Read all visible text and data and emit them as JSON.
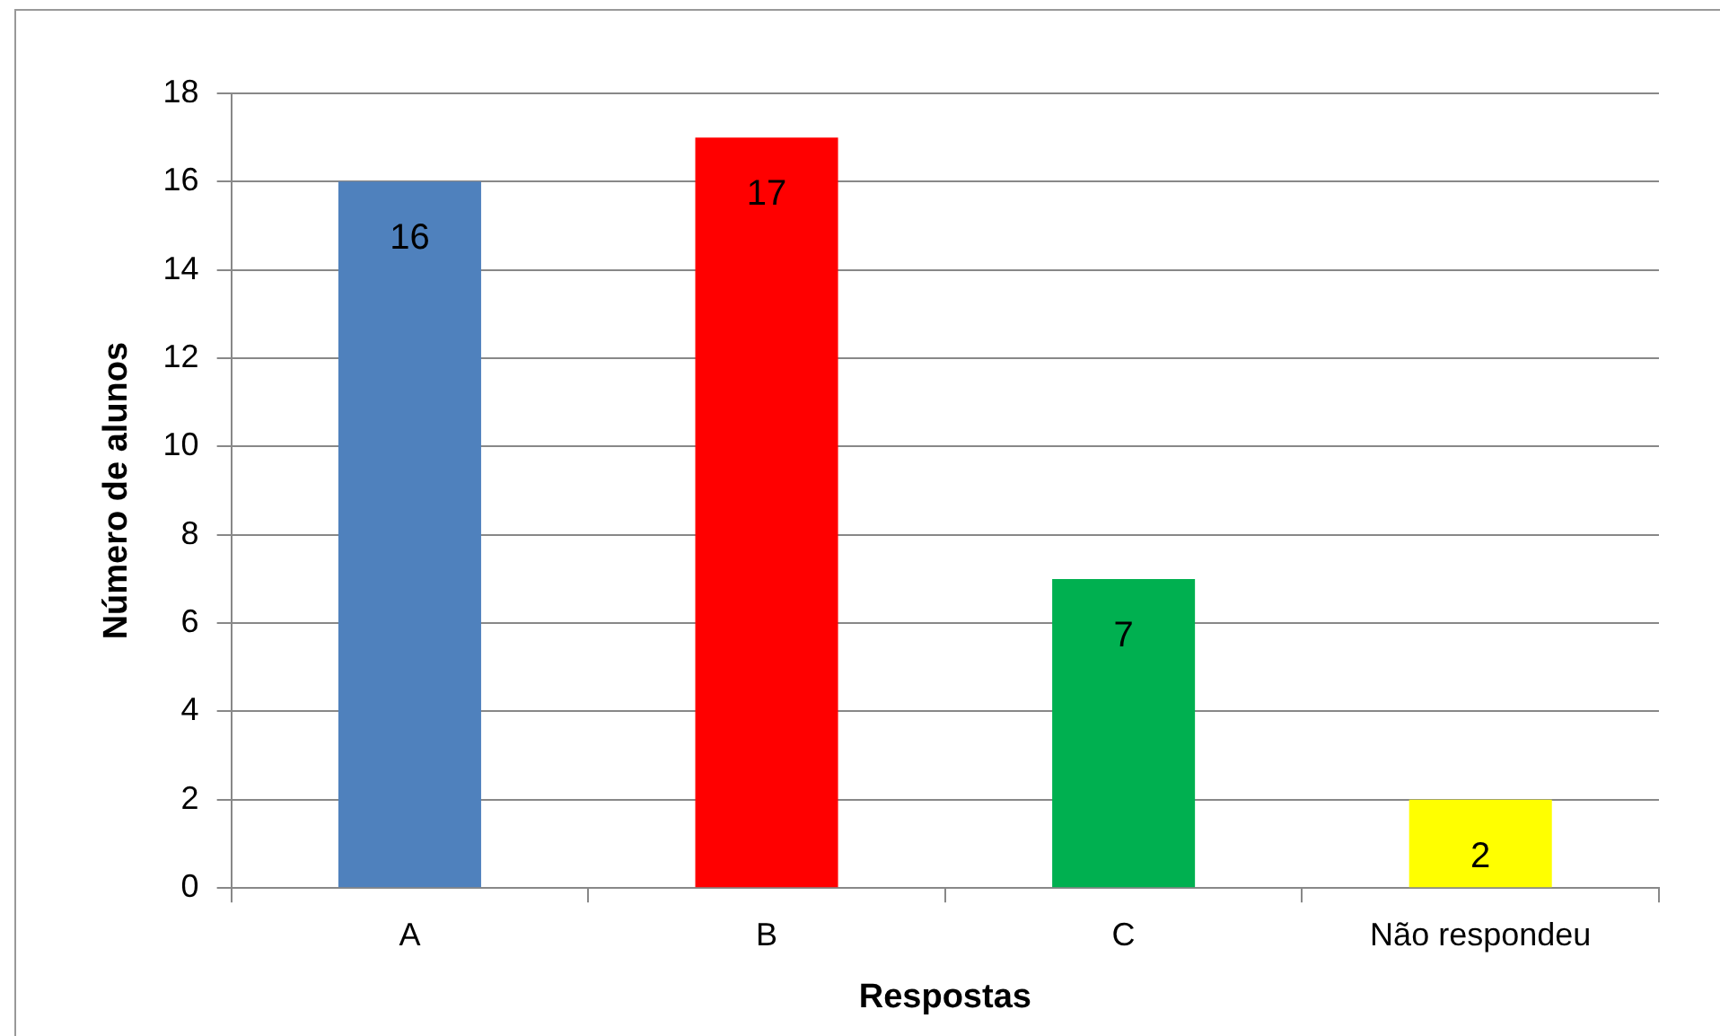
{
  "chart_data": {
    "type": "bar",
    "xlabel": "Respostas",
    "ylabel": "Número de alunos",
    "categories": [
      "A",
      "B",
      "C",
      "Não respondeu"
    ],
    "values": [
      16,
      17,
      7,
      2
    ],
    "colors": [
      "#4f81bd",
      "#ff0000",
      "#00b050",
      "#ffff00"
    ],
    "ylim": [
      0,
      18
    ],
    "yticks": [
      0,
      2,
      4,
      6,
      8,
      10,
      12,
      14,
      16,
      18
    ],
    "grid": "y",
    "data_labels": true,
    "legend": false
  }
}
